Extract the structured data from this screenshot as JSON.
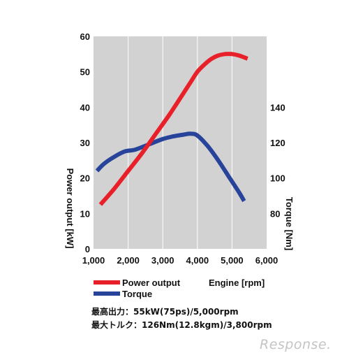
{
  "chart_data": {
    "type": "line",
    "title": "",
    "xlabel": "Engine [rpm]",
    "ylabel_left": "Power output [kW]",
    "ylabel_right": "Torque [Nm]",
    "x_ticks": [
      "1,000",
      "2,000",
      "3,000",
      "4,000",
      "5,000",
      "6,000"
    ],
    "y_left_ticks": [
      "0",
      "10",
      "20",
      "30",
      "40",
      "50",
      "60"
    ],
    "y_right_ticks": [
      "80",
      "100",
      "120",
      "140"
    ],
    "xlim": [
      1000,
      6000
    ],
    "ylim_left": [
      0,
      60
    ],
    "ylim_right": [
      60,
      180
    ],
    "grid": "vertical",
    "legend": "bottom-left",
    "series": [
      {
        "name": "Power output",
        "axis": "left",
        "color": "#e8202a",
        "x": [
          1200,
          1600,
          2000,
          2400,
          2800,
          3200,
          3600,
          3800,
          4000,
          4200,
          4400,
          4600,
          4800,
          5000,
          5200,
          5450
        ],
        "y": [
          12.5,
          17,
          22,
          27,
          32.5,
          38,
          44,
          47,
          50,
          52,
          53.6,
          54.6,
          55,
          55,
          54.6,
          53.7
        ]
      },
      {
        "name": "Torque",
        "axis": "right",
        "color": "#27439a",
        "x": [
          1100,
          1300,
          1600,
          1900,
          2200,
          2600,
          3000,
          3300,
          3600,
          3800,
          4000,
          4300,
          4600,
          4900,
          5200,
          5350
        ],
        "y": [
          104,
          108,
          112,
          115,
          116,
          119,
          122,
          123.5,
          124.5,
          125,
          124,
          118,
          110,
          101,
          92,
          87
        ]
      }
    ]
  },
  "specs": {
    "max_power": "最高出力：55kW(75ps)/5,000rpm",
    "max_torque": "最大トルク：126Nm(12.8kgm)/3,800rpm"
  },
  "watermark": "Response."
}
